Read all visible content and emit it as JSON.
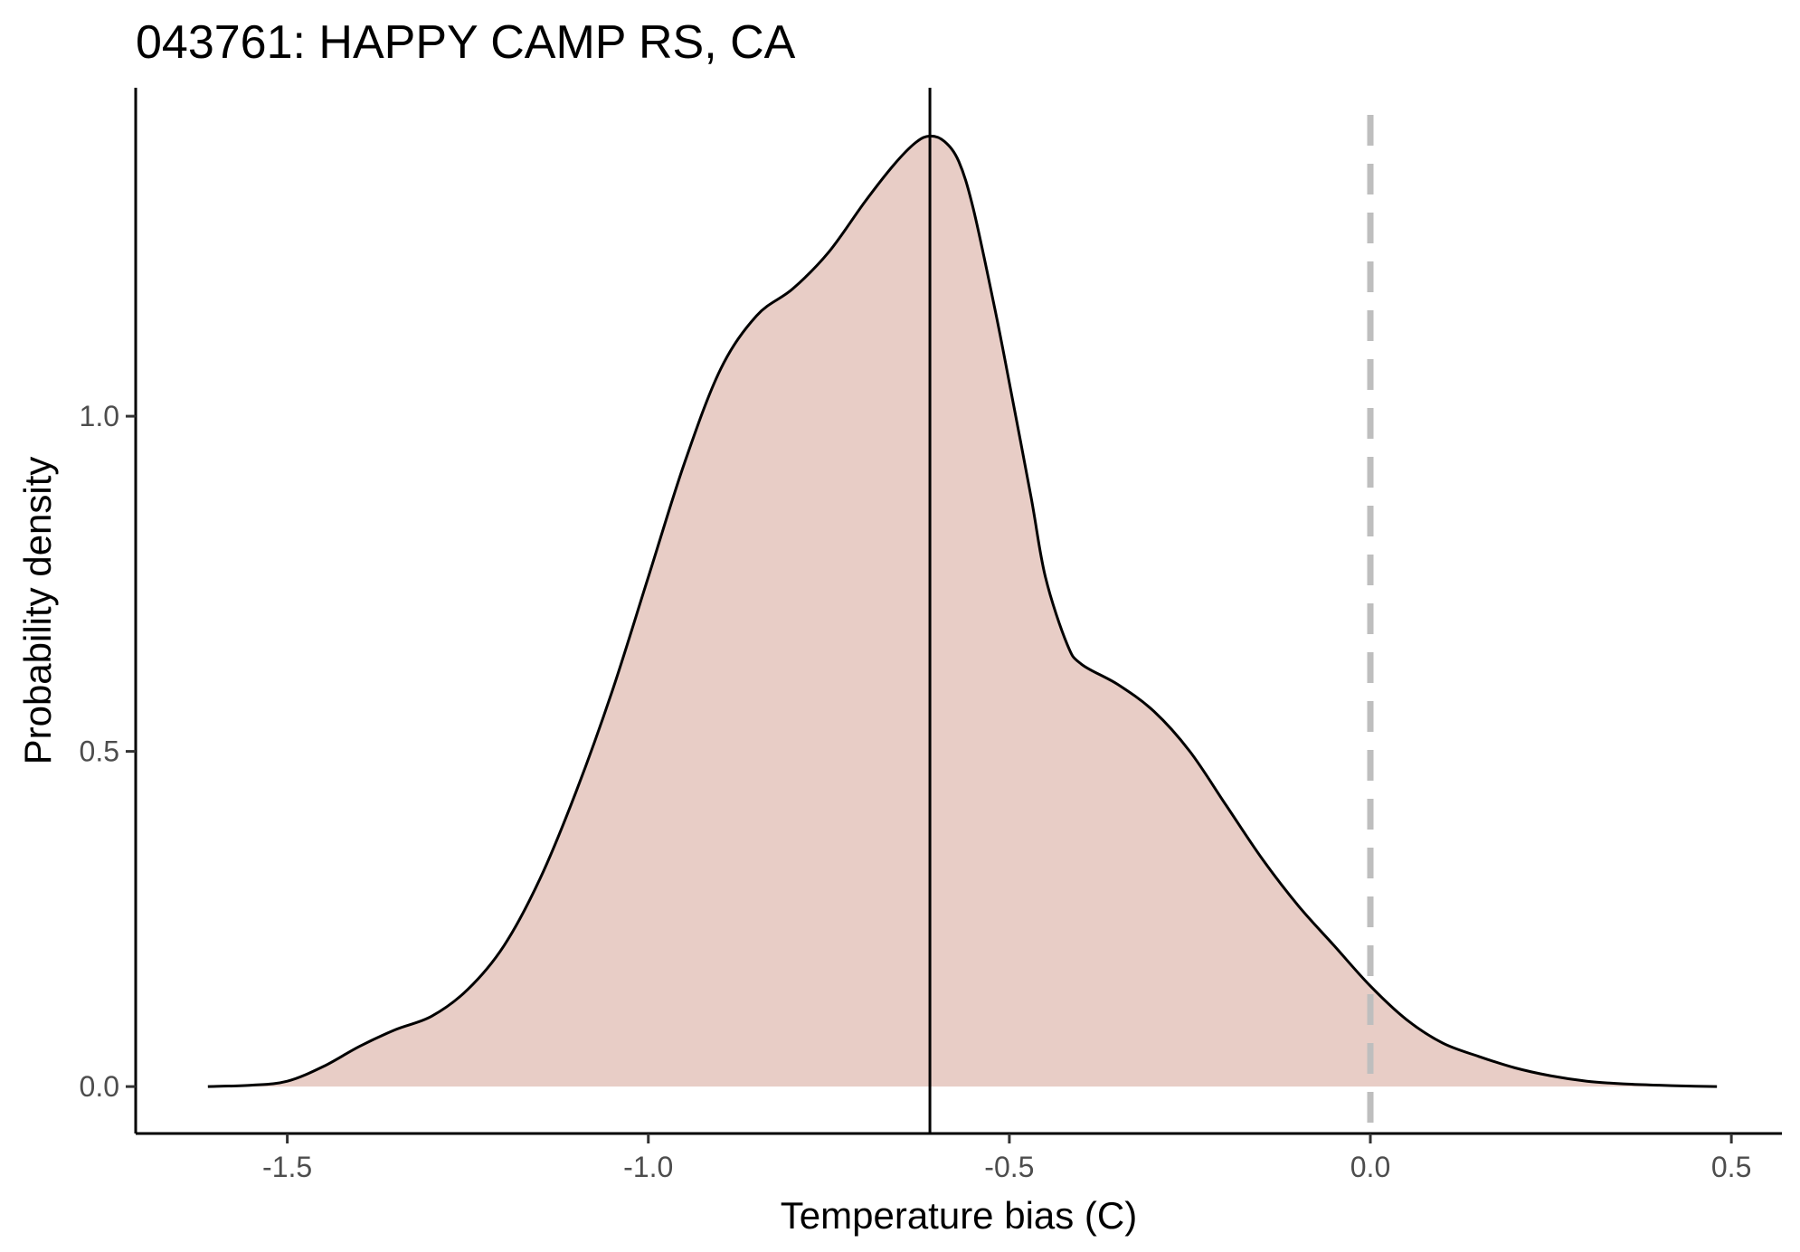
{
  "chart_data": {
    "type": "area",
    "title": "043761: HAPPY CAMP RS, CA",
    "xlabel": "Temperature bias (C)",
    "ylabel": "Probability density",
    "xlim": [
      -1.71,
      0.57
    ],
    "ylim": [
      -0.07,
      1.49
    ],
    "x_ticks": [
      -1.5,
      -1.0,
      -0.5,
      0.0,
      0.5
    ],
    "x_tick_labels": [
      "-1.5",
      "-1.0",
      "-0.5",
      "0.0",
      "0.5"
    ],
    "y_ticks": [
      0.0,
      0.5,
      1.0
    ],
    "y_tick_labels": [
      "0.0",
      "0.5",
      "1.0"
    ],
    "grid": false,
    "legend": "none",
    "fill_color": "#e8cdc6",
    "line_color": "#000000",
    "reference_lines": [
      {
        "x": -0.61,
        "style": "solid",
        "color": "#000000"
      },
      {
        "x": 0.0,
        "style": "dashed",
        "color": "#bebebe"
      }
    ],
    "series": [
      {
        "x": [
          -1.61,
          -1.55,
          -1.5,
          -1.45,
          -1.4,
          -1.35,
          -1.3,
          -1.25,
          -1.2,
          -1.15,
          -1.1,
          -1.05,
          -1.0,
          -0.95,
          -0.9,
          -0.85,
          -0.8,
          -0.75,
          -0.7,
          -0.66,
          -0.63,
          -0.61,
          -0.59,
          -0.57,
          -0.55,
          -0.52,
          -0.5,
          -0.47,
          -0.45,
          -0.42,
          -0.4,
          -0.35,
          -0.3,
          -0.25,
          -0.2,
          -0.15,
          -0.1,
          -0.05,
          0.0,
          0.05,
          0.1,
          0.15,
          0.2,
          0.25,
          0.3,
          0.35,
          0.4,
          0.45,
          0.48
        ],
        "y": [
          0.0,
          0.002,
          0.008,
          0.03,
          0.06,
          0.085,
          0.105,
          0.145,
          0.21,
          0.31,
          0.44,
          0.59,
          0.76,
          0.93,
          1.07,
          1.15,
          1.19,
          1.245,
          1.32,
          1.375,
          1.408,
          1.418,
          1.41,
          1.38,
          1.31,
          1.16,
          1.05,
          0.88,
          0.76,
          0.66,
          0.63,
          0.6,
          0.56,
          0.5,
          0.42,
          0.34,
          0.27,
          0.21,
          0.15,
          0.1,
          0.065,
          0.045,
          0.028,
          0.016,
          0.008,
          0.004,
          0.002,
          0.0005,
          0.0
        ]
      }
    ]
  }
}
